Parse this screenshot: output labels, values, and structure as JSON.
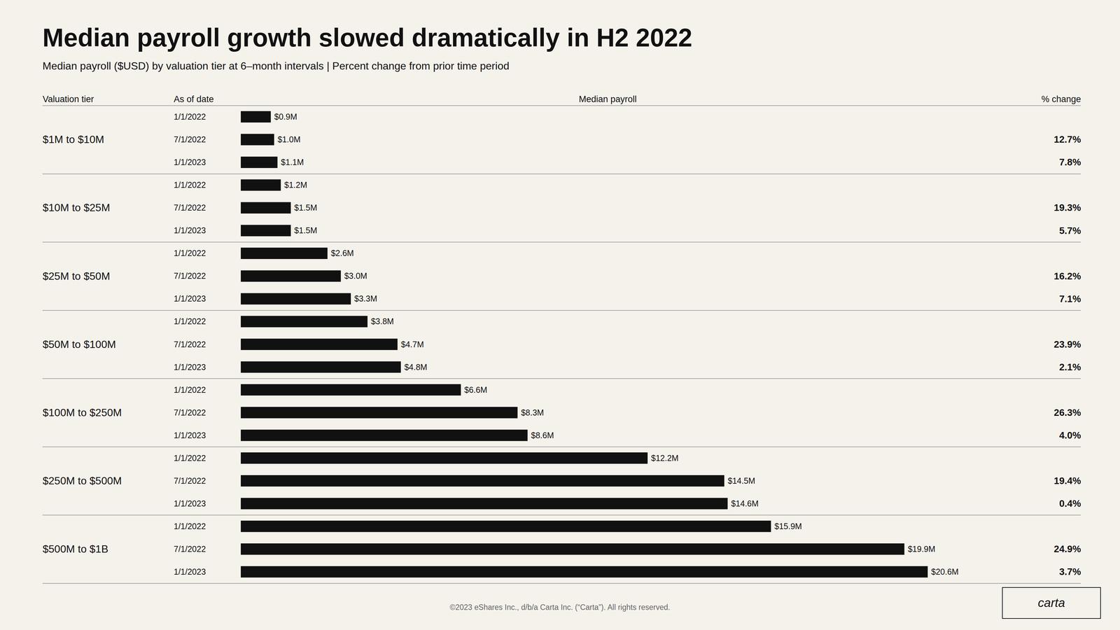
{
  "chart_data": {
    "type": "bar",
    "orientation": "horizontal",
    "title": "Median payroll growth slowed dramatically in H2 2022",
    "subtitle": "Median payroll ($USD) by valuation tier at 6–month intervals  |  Percent change from prior time period",
    "column_headers": [
      "Valuation tier",
      "As of date",
      "Median payroll",
      "% change"
    ],
    "categories": [
      "$1M to $10M",
      "$10M to $25M",
      "$25M to $50M",
      "$50M to $100M",
      "$100M to $250M",
      "$250M to $500M",
      "$500M to $1B"
    ],
    "series": [
      {
        "name": "1/1/2022",
        "color": "#111111",
        "values": [
          0.9,
          1.2,
          2.6,
          3.8,
          6.6,
          12.2,
          15.9
        ],
        "value_labels": [
          "$0.9M",
          "$1.2M",
          "$2.6M",
          "$3.8M",
          "$6.6M",
          "$12.2M",
          "$15.9M"
        ]
      },
      {
        "name": "7/1/2022",
        "color": "#111111",
        "values": [
          1.0,
          1.5,
          3.0,
          4.7,
          8.3,
          14.5,
          19.9
        ],
        "value_labels": [
          "$1.0M",
          "$1.5M",
          "$3.0M",
          "$4.7M",
          "$8.3M",
          "$14.5M",
          "$19.9M"
        ],
        "pct_change": [
          "12.7%",
          "19.3%",
          "16.2%",
          "23.9%",
          "26.3%",
          "19.4%",
          "24.9%"
        ]
      },
      {
        "name": "1/1/2023",
        "color": "#111111",
        "values": [
          1.1,
          1.5,
          3.3,
          4.8,
          8.6,
          14.6,
          20.6
        ],
        "value_labels": [
          "$1.1M",
          "$1.5M",
          "$3.3M",
          "$4.8M",
          "$8.6M",
          "$14.6M",
          "$20.6M"
        ],
        "pct_change": [
          "7.8%",
          "5.7%",
          "7.1%",
          "2.1%",
          "4.0%",
          "0.4%",
          "3.7%"
        ]
      }
    ],
    "xlim": [
      0,
      22
    ],
    "data_labels": true,
    "tick_labels": false,
    "grid": false,
    "footer": "©2023 eShares Inc., d/b/a Carta Inc. (“Carta”). All rights reserved.",
    "logo": "carta"
  }
}
